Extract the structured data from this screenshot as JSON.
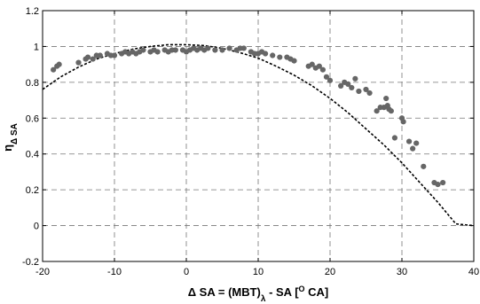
{
  "chart_data": {
    "type": "scatter",
    "title": "",
    "xlabel": {
      "parts": [
        {
          "text": "Δ SA = (MBT)",
          "style": "normal"
        },
        {
          "text": "λ",
          "style": "sub"
        },
        {
          "text": " - SA [",
          "style": "normal"
        },
        {
          "text": "O",
          "style": "sup"
        },
        {
          "text": " CA]",
          "style": "normal"
        }
      ]
    },
    "ylabel": {
      "parts": [
        {
          "text": "η",
          "style": "normal"
        },
        {
          "text": "Δ SA",
          "style": "sub"
        }
      ]
    },
    "xlim": [
      -20,
      40
    ],
    "ylim": [
      -0.2,
      1.2
    ],
    "xticks": [
      -20,
      -10,
      0,
      10,
      20,
      30,
      40
    ],
    "xtick_labels": [
      "-20",
      "-10",
      "0",
      "10",
      "20",
      "30",
      "40"
    ],
    "yticks": [
      -0.2,
      0,
      0.2,
      0.4,
      0.6,
      0.8,
      1,
      1.2
    ],
    "ytick_labels": [
      "-0.2",
      "0",
      "0.2",
      "0.4",
      "0.6",
      "0.8",
      "1",
      "1.2"
    ],
    "grid": true,
    "grid_style": "dashed",
    "series": [
      {
        "kind": "points",
        "color": "#666666",
        "points": [
          [
            -18.5,
            0.87
          ],
          [
            -18.0,
            0.89
          ],
          [
            -17.7,
            0.9
          ],
          [
            -15.0,
            0.91
          ],
          [
            -14.0,
            0.93
          ],
          [
            -13.7,
            0.94
          ],
          [
            -13.0,
            0.93
          ],
          [
            -12.5,
            0.95
          ],
          [
            -12.0,
            0.95
          ],
          [
            -11.0,
            0.96
          ],
          [
            -10.5,
            0.95
          ],
          [
            -10.0,
            0.95
          ],
          [
            -9.0,
            0.96
          ],
          [
            -8.5,
            0.97
          ],
          [
            -8.0,
            0.96
          ],
          [
            -7.5,
            0.97
          ],
          [
            -7.0,
            0.96
          ],
          [
            -6.5,
            0.97
          ],
          [
            -6.0,
            0.98
          ],
          [
            -5.0,
            0.97
          ],
          [
            -4.5,
            0.98
          ],
          [
            -4.0,
            0.97
          ],
          [
            -3.0,
            0.98
          ],
          [
            -2.5,
            0.97
          ],
          [
            -2.0,
            0.98
          ],
          [
            -1.5,
            0.98
          ],
          [
            -0.5,
            0.98
          ],
          [
            0.0,
            0.97
          ],
          [
            0.5,
            0.98
          ],
          [
            1.0,
            0.99
          ],
          [
            1.5,
            0.98
          ],
          [
            2.0,
            0.99
          ],
          [
            2.5,
            0.98
          ],
          [
            3.0,
            0.99
          ],
          [
            4.0,
            0.98
          ],
          [
            5.0,
            0.98
          ],
          [
            6.0,
            0.99
          ],
          [
            7.0,
            0.98
          ],
          [
            7.5,
            0.99
          ],
          [
            8.0,
            0.99
          ],
          [
            9.0,
            0.97
          ],
          [
            9.5,
            0.96
          ],
          [
            10.0,
            0.96
          ],
          [
            10.5,
            0.97
          ],
          [
            11.0,
            0.96
          ],
          [
            12.0,
            0.95
          ],
          [
            13.0,
            0.94
          ],
          [
            14.0,
            0.94
          ],
          [
            14.5,
            0.93
          ],
          [
            15.0,
            0.92
          ],
          [
            17.0,
            0.89
          ],
          [
            17.5,
            0.9
          ],
          [
            18.0,
            0.88
          ],
          [
            18.5,
            0.89
          ],
          [
            19.0,
            0.87
          ],
          [
            19.5,
            0.83
          ],
          [
            20.0,
            0.81
          ],
          [
            21.5,
            0.78
          ],
          [
            22.0,
            0.8
          ],
          [
            22.5,
            0.79
          ],
          [
            23.0,
            0.77
          ],
          [
            23.5,
            0.82
          ],
          [
            24.0,
            0.75
          ],
          [
            25.0,
            0.76
          ],
          [
            25.5,
            0.74
          ],
          [
            26.5,
            0.64
          ],
          [
            27.0,
            0.66
          ],
          [
            27.5,
            0.66
          ],
          [
            28.0,
            0.67
          ],
          [
            28.2,
            0.65
          ],
          [
            27.8,
            0.71
          ],
          [
            28.5,
            0.64
          ],
          [
            29.0,
            0.49
          ],
          [
            30.0,
            0.6
          ],
          [
            30.2,
            0.58
          ],
          [
            31.0,
            0.47
          ],
          [
            31.5,
            0.43
          ],
          [
            32.0,
            0.46
          ],
          [
            33.0,
            0.33
          ],
          [
            34.5,
            0.24
          ],
          [
            35.0,
            0.23
          ],
          [
            35.7,
            0.24
          ]
        ]
      },
      {
        "kind": "curve",
        "style": "dotted",
        "color": "#000000",
        "points": [
          [
            -20,
            0.76
          ],
          [
            -17.5,
            0.83
          ],
          [
            -15,
            0.885
          ],
          [
            -12.5,
            0.93
          ],
          [
            -10,
            0.96
          ],
          [
            -7.5,
            0.985
          ],
          [
            -5,
            1.0
          ],
          [
            -2.5,
            1.01
          ],
          [
            0,
            1.01
          ],
          [
            2.5,
            1.005
          ],
          [
            5,
            0.99
          ],
          [
            7.5,
            0.965
          ],
          [
            10,
            0.935
          ],
          [
            12.5,
            0.89
          ],
          [
            15,
            0.84
          ],
          [
            17.5,
            0.78
          ],
          [
            20,
            0.71
          ],
          [
            22.5,
            0.63
          ],
          [
            25,
            0.54
          ],
          [
            27.5,
            0.45
          ],
          [
            30,
            0.35
          ],
          [
            32.5,
            0.24
          ],
          [
            35,
            0.13
          ],
          [
            37.5,
            0.01
          ],
          [
            40,
            0.0
          ]
        ]
      }
    ]
  }
}
